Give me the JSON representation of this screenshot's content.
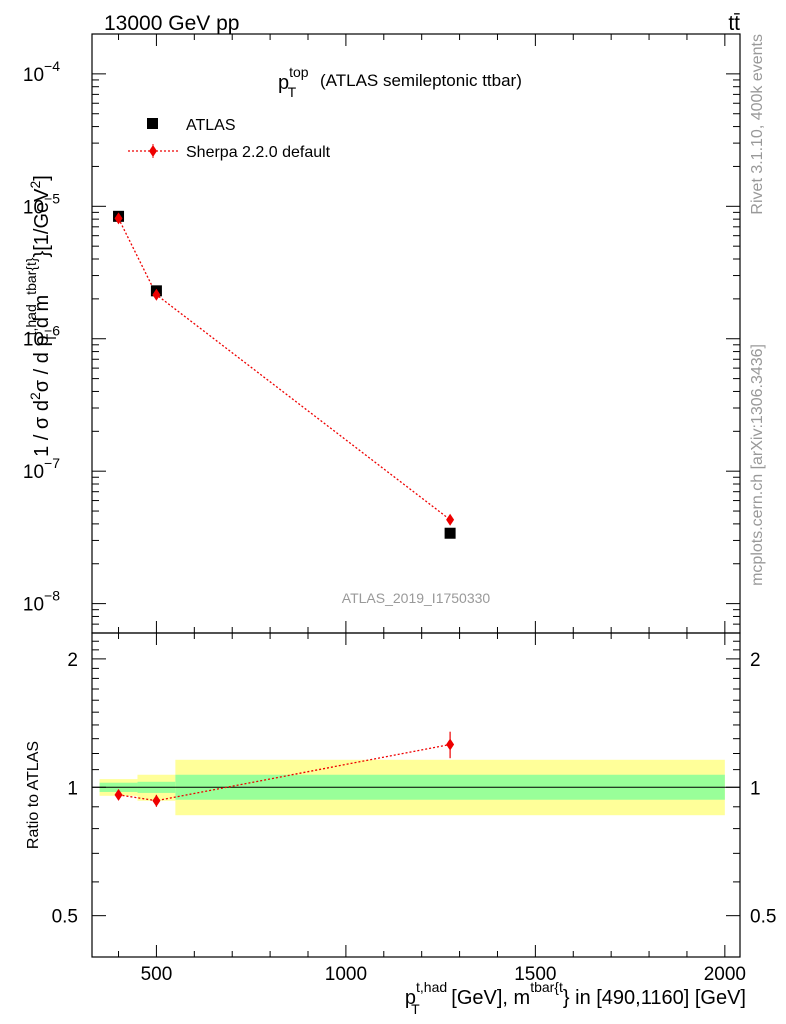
{
  "header": {
    "energy": "13000 GeV pp",
    "process": "tt̄"
  },
  "side": {
    "rivet": "Rivet 3.1.10,  400k events",
    "mcplots": "mcplots.cern.ch [arXiv:1306.3436]"
  },
  "chart_data": {
    "type": "scatter",
    "title_main": "p",
    "title_sup": "top",
    "title_sub": "T",
    "title_rest": "(ATLAS semileptonic ttbar)",
    "watermark": "ATLAS_2019_I1750330",
    "ylabel_main": "1 / σ d²σ / d p_T^{t,had} d m^{tbar{t}} [1/GeV²]",
    "ylabel_ratio": "Ratio to ATLAS",
    "xlabel": "p_T^{t,had} [GeV], m^{tbar{t}} in [490,1160] [GeV]",
    "xlim": [
      330,
      2040
    ],
    "ylim_main": [
      6e-09,
      0.0002
    ],
    "ylim_ratio": [
      0.4,
      2.3
    ],
    "y_log": true,
    "x_ticks": [
      {
        "v": 500,
        "label": "500"
      },
      {
        "v": 1000,
        "label": "1000"
      },
      {
        "v": 1500,
        "label": "1500"
      },
      {
        "v": 2000,
        "label": "2000"
      }
    ],
    "y_ticks_main": [
      {
        "v": 0.0001,
        "base": "10",
        "exp": "−4"
      },
      {
        "v": 1e-05,
        "base": "10",
        "exp": "−5"
      },
      {
        "v": 1e-06,
        "base": "10",
        "exp": "−6"
      },
      {
        "v": 1e-07,
        "base": "10",
        "exp": "−7"
      },
      {
        "v": 1e-08,
        "base": "10",
        "exp": "−8"
      }
    ],
    "y_ticks_ratio": [
      {
        "v": 2,
        "label": "2"
      },
      {
        "v": 1,
        "label": "1"
      },
      {
        "v": 0.5,
        "label": "0.5"
      }
    ],
    "legend": [
      {
        "name": "ATLAS",
        "marker": "square",
        "color": "#000000"
      },
      {
        "name": "Sherpa 2.2.0 default",
        "marker": "diamond",
        "color": "#ee0000"
      }
    ],
    "series": [
      {
        "name": "ATLAS",
        "x": [
          400,
          500,
          1275
        ],
        "y": [
          8.4e-06,
          2.3e-06,
          3.4e-08
        ]
      },
      {
        "name": "Sherpa 2.2.0 default",
        "x": [
          400,
          500,
          1275
        ],
        "y": [
          8.1e-06,
          2.15e-06,
          4.3e-08
        ]
      }
    ],
    "ratio_series": {
      "name": "Sherpa 2.2.0 default",
      "x": [
        400,
        500,
        1275
      ],
      "y": [
        0.96,
        0.93,
        1.26
      ],
      "err": [
        0.01,
        0.03,
        0.09
      ]
    },
    "bands": [
      {
        "x0": 350,
        "x1": 450,
        "g_lo": 0.975,
        "g_hi": 1.025,
        "y_lo": 0.955,
        "y_hi": 1.045
      },
      {
        "x0": 450,
        "x1": 550,
        "g_lo": 0.97,
        "g_hi": 1.03,
        "y_lo": 0.93,
        "y_hi": 1.07
      },
      {
        "x0": 550,
        "x1": 2000,
        "g_lo": 0.935,
        "g_hi": 1.07,
        "y_lo": 0.86,
        "y_hi": 1.16
      }
    ],
    "colors": {
      "data": "#000000",
      "mc": "#ee0000",
      "band_outer": "#ffff99",
      "band_inner": "#99ff99"
    }
  }
}
